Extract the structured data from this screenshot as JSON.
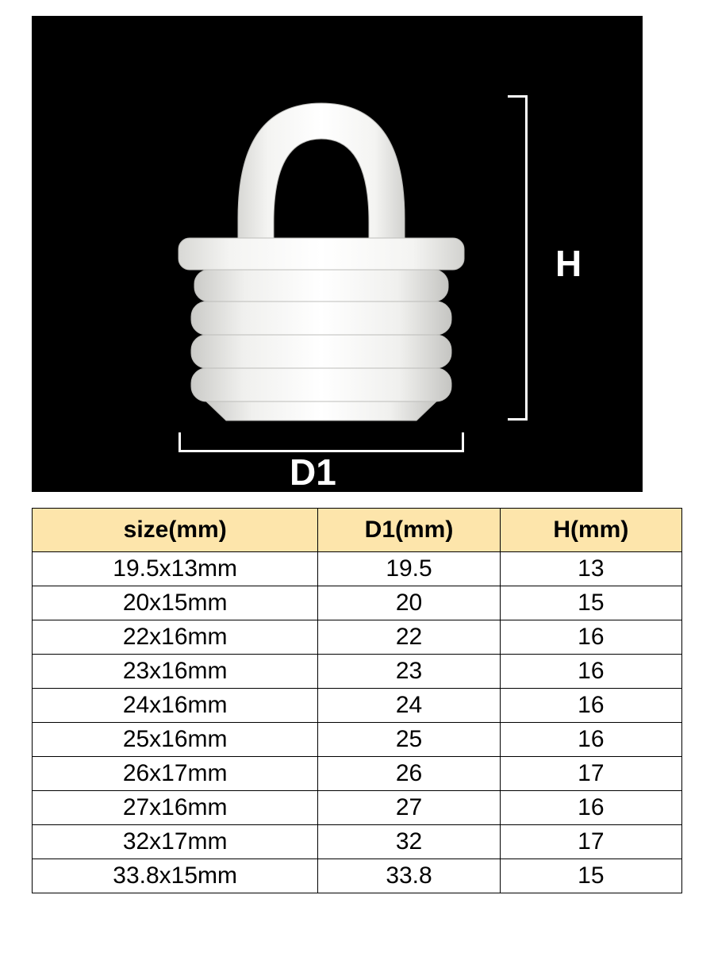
{
  "diagram": {
    "h_label": "H",
    "d1_label": "D1",
    "background_color": "#000000",
    "plug_color": "#f0f0ef",
    "plug_shadow": "#c8c8c6",
    "label_color": "#ffffff",
    "label_fontsize": 46,
    "bracket_color": "#ffffff"
  },
  "table": {
    "header_bg": "#fde5ab",
    "border_color": "#000000",
    "cell_bg": "#ffffff",
    "fontsize": 30,
    "columns": [
      {
        "key": "size",
        "label": "size(mm)",
        "width": "44%"
      },
      {
        "key": "d1",
        "label": "D1(mm)",
        "width": "28%"
      },
      {
        "key": "h",
        "label": "H(mm)",
        "width": "28%"
      }
    ],
    "rows": [
      {
        "size": "19.5x13mm",
        "d1": "19.5",
        "h": "13"
      },
      {
        "size": "20x15mm",
        "d1": "20",
        "h": "15"
      },
      {
        "size": "22x16mm",
        "d1": "22",
        "h": "16"
      },
      {
        "size": "23x16mm",
        "d1": "23",
        "h": "16"
      },
      {
        "size": "24x16mm",
        "d1": "24",
        "h": "16"
      },
      {
        "size": "25x16mm",
        "d1": "25",
        "h": "16"
      },
      {
        "size": "26x17mm",
        "d1": "26",
        "h": "17"
      },
      {
        "size": "27x16mm",
        "d1": "27",
        "h": "16"
      },
      {
        "size": "32x17mm",
        "d1": "32",
        "h": "17"
      },
      {
        "size": "33.8x15mm",
        "d1": "33.8",
        "h": "15"
      }
    ]
  }
}
